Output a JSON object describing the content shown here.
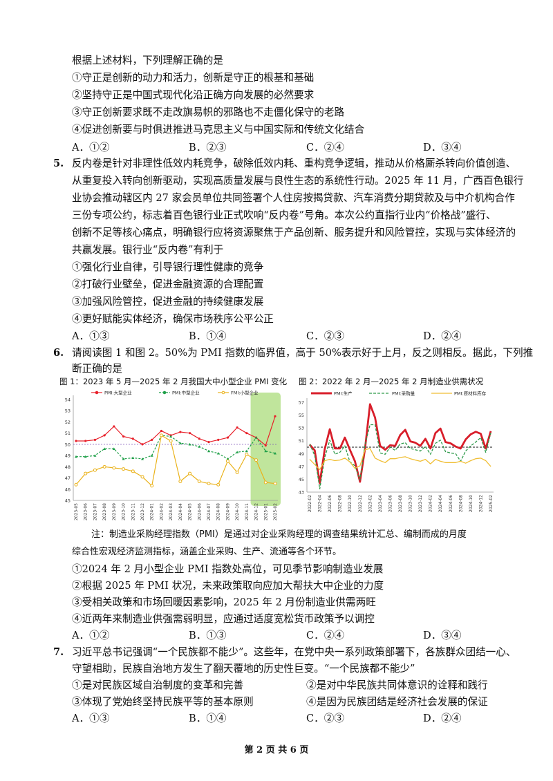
{
  "q4": {
    "stem_end": "根据上述材料，下列理解正确的是",
    "items": [
      "①守正是创新的动力和活力，创新是守正的根基和基础",
      "②坚持守正是中国式现代化沿正确方向发展的必然要求",
      "③守正创新要求既不走改旗易帜的邪路也不走僵化保守的老路",
      "④促进创新要与时俱进推进马克思主义与中国实际和传统文化结合"
    ],
    "options": [
      "A．①②",
      "B．②③",
      "C．②④",
      "D．③④"
    ]
  },
  "q5": {
    "number": "5.",
    "lines": [
      "反内卷是针对非理性低效内耗竞争，破除低效内耗、重构竞争逻辑，推动从价格厮杀转向价值创造、",
      "从重复投入转向创新驱动，实现高质量发展与良性生态的系统性行动。2025 年 11 月，广西百色银行",
      "业协会推动辖区内 27 家会员单位共同签署个人住房按揭贷款、汽车消费分期贷款及与中介机构合作",
      "三份专项公约，标志着百色银行业正式吹响“反内卷”号角。本次公约直指行业内“价格战”盛行、",
      "创新不足等核心痛点，明确银行应将资源聚焦于产品创新、服务提升和风险管控，实现与实体经济的",
      "共赢发展。银行业“反内卷”有利于"
    ],
    "items": [
      "①强化行业自律，引导银行理性健康的竞争",
      "②打破行业壁垒，促进金融资源的合理配置",
      "③加强风险管控，促进金融的持续健康发展",
      "④更好赋能实体经济，确保市场秩序公平公正"
    ],
    "options": [
      "A．①③",
      "B．①④",
      "C．②③",
      "D．②④"
    ]
  },
  "q6": {
    "number": "6.",
    "lines": [
      "请阅读图 1 和图 2。50%为 PMI 指数的临界值，高于 50%表示好于上月，反之则相反。据此，下列推",
      "断正确的是"
    ],
    "note_lines": [
      "注：制造业采购经理指数（PMI）是通过对企业采购经理的调查结果统计汇总、编制而成的月度",
      "综合性宏观经济监测指标，涵盖企业采购、生产、流通等各个环节。"
    ],
    "items": [
      "①2024 年 2 月小型企业 PMI 指数处高位，可见季节影响制造业发展",
      "②根据 2025 年 PMI 状况，未来政策取向应加大帮扶大中企业的力度",
      "③受相关政策和市场回暖因素影响，2025 年 2 月份制造业供需两旺",
      "④近两年来制造业供强需弱明显，应通过适度宽松货币政策予以调控"
    ],
    "options": [
      "A．①②",
      "B．①③",
      "C．②④",
      "D．③④"
    ]
  },
  "q7": {
    "number": "7.",
    "lines": [
      "习近平总书记强调“一个民族都不能少”。这些年，在党中央一系列政策部署下，各族群众团结一心、",
      "守望相助，民族自治地方发生了翻天覆地的历史性巨变。“一个民族都不能少”"
    ],
    "items": [
      "①是对民族区域自治制度的变革和完善",
      "②是对中华民族共同体意识的诠释和践行",
      "③体现了党始终坚持民族平等的基本原则",
      "④是因为民族团结是经济社会发展的保证"
    ],
    "options": [
      "A．①③",
      "B．①④",
      "C．②③",
      "D．②④"
    ]
  },
  "footer": "第 2 页 共 6 页",
  "chart_data": [
    {
      "type": "line",
      "title": "图 1：2023 年 5 月—2025 年 2 月我国大中小型企业 PMI 变化",
      "x": [
        "2023-05",
        "2023-06",
        "2023-07",
        "2023-08",
        "2023-09",
        "2023-10",
        "2023-11",
        "2023-12",
        "2024-01",
        "2024-02",
        "2024-03",
        "2024-04",
        "2024-05",
        "2024-06",
        "2024-07",
        "2024-08",
        "2024-09",
        "2024-10",
        "2024-11",
        "2024-12",
        "2025-01",
        "2025-02"
      ],
      "x_tick_labels": [
        "2023-05",
        "2023-06",
        "2023-07",
        "2023-08",
        "2023-09",
        "2023-10",
        "2023-11",
        "2023-12",
        "2024-01",
        "2024-02",
        "2024-03",
        "2024-04",
        "2024-05",
        "2024-06",
        "2024-07",
        "2024-08",
        "2024-09",
        "2024-10",
        "2024-11",
        "2024-12",
        "2025-01",
        "2025-02"
      ],
      "series": [
        {
          "name": "PMI:大型企业",
          "color": "#e8202a",
          "values": [
            50.3,
            50.3,
            50.4,
            50.8,
            51.6,
            50.7,
            50.5,
            50.0,
            50.4,
            51.2,
            50.8,
            51.1,
            51.0,
            50.5,
            50.2,
            50.4,
            50.6,
            51.5,
            51.0,
            50.6,
            49.9,
            52.5
          ]
        },
        {
          "name": "PMI:中型企业",
          "color": "#21a04a",
          "values": [
            48.9,
            48.9,
            49.0,
            49.6,
            49.6,
            48.7,
            48.8,
            48.7,
            49.0,
            50.8,
            50.7,
            50.1,
            50.0,
            49.8,
            49.4,
            49.2,
            48.7,
            49.3,
            49.4,
            50.6,
            49.4,
            49.2
          ]
        },
        {
          "name": "FMI:小型企业",
          "color": "#eab21a",
          "values": [
            46.4,
            47.4,
            47.7,
            48.0,
            47.9,
            47.8,
            47.6,
            47.1,
            46.3,
            50.8,
            50.3,
            46.7,
            47.4,
            46.7,
            46.5,
            46.4,
            48.5,
            47.5,
            49.1,
            48.6,
            46.6,
            46.5
          ]
        }
      ],
      "reference_line": 50,
      "ylim": [
        45,
        54
      ],
      "y_ticks": [
        45,
        46,
        47,
        48,
        49,
        50,
        51,
        52,
        53,
        54
      ],
      "highlight": {
        "from": "2024-12",
        "to": "2025-02",
        "color": "#b5e08b"
      },
      "legend": "top"
    },
    {
      "type": "line",
      "title": "图 2：2022 年 2 月—2025 年 2 月制造业供需状况",
      "x": [
        "2022-02",
        "2022-03",
        "2022-04",
        "2022-05",
        "2022-06",
        "2022-07",
        "2022-08",
        "2022-09",
        "2022-10",
        "2022-11",
        "2022-12",
        "2023-01",
        "2023-02",
        "2023-03",
        "2023-04",
        "2023-05",
        "2023-06",
        "2023-07",
        "2023-08",
        "2023-09",
        "2023-10",
        "2023-11",
        "2023-12",
        "2024-01",
        "2024-02",
        "2024-03",
        "2024-04",
        "2024-05",
        "2024-06",
        "2024-07",
        "2024-08",
        "2024-09",
        "2024-10",
        "2024-11",
        "2024-12",
        "2025-01",
        "2025-02"
      ],
      "x_tick_labels": [
        "2022-02",
        "2022-04",
        "2022-06",
        "2022-08",
        "2022-10",
        "2022-12",
        "2023-02",
        "2023-04",
        "2023-06",
        "2023-08",
        "2023-10",
        "2023-12",
        "2024-02",
        "2024-04",
        "2024-06",
        "2024-08",
        "2024-10",
        "2024-12",
        "2025-02"
      ],
      "series": [
        {
          "name": "PMI:生产",
          "color": "#d81e2a",
          "values": [
            50.4,
            49.5,
            44.4,
            49.7,
            52.8,
            49.8,
            49.8,
            51.5,
            49.6,
            47.8,
            44.6,
            49.8,
            56.7,
            54.6,
            50.2,
            49.6,
            50.3,
            50.2,
            51.9,
            52.7,
            50.9,
            50.7,
            50.2,
            51.3,
            49.8,
            52.2,
            52.9,
            50.8,
            50.6,
            50.1,
            49.8,
            51.2,
            52.0,
            52.4,
            52.1,
            49.8,
            52.5
          ]
        },
        {
          "name": "PMI:采购量",
          "color": "#2d9a4a",
          "values": [
            50.5,
            48.7,
            43.5,
            48.4,
            51.1,
            48.9,
            49.2,
            50.2,
            47.7,
            47.1,
            44.9,
            50.4,
            53.5,
            53.5,
            49.1,
            48.9,
            50.0,
            49.5,
            50.5,
            50.7,
            49.8,
            49.6,
            49.4,
            50.1,
            48.9,
            50.6,
            51.1,
            49.3,
            49.1,
            49.0,
            47.8,
            49.4,
            50.2,
            50.8,
            51.5,
            49.2,
            52.2
          ]
        },
        {
          "name": "PMI:原材料库存",
          "color": "#f0be34",
          "values": [
            48.1,
            47.3,
            46.5,
            47.9,
            48.1,
            47.9,
            48.0,
            48.3,
            47.7,
            46.7,
            47.1,
            49.6,
            49.8,
            48.3,
            47.9,
            47.6,
            48.2,
            48.2,
            48.4,
            48.5,
            48.2,
            48.0,
            47.8,
            48.1,
            47.4,
            48.1,
            47.8,
            47.6,
            47.6,
            47.6,
            47.8,
            47.5,
            47.9,
            48.2,
            48.3,
            47.9,
            47.0
          ]
        }
      ],
      "reference_line": 50,
      "ylim": [
        43,
        57
      ],
      "y_ticks": [
        43,
        45,
        47,
        49,
        51,
        53,
        55,
        57
      ],
      "legend": "top"
    }
  ]
}
